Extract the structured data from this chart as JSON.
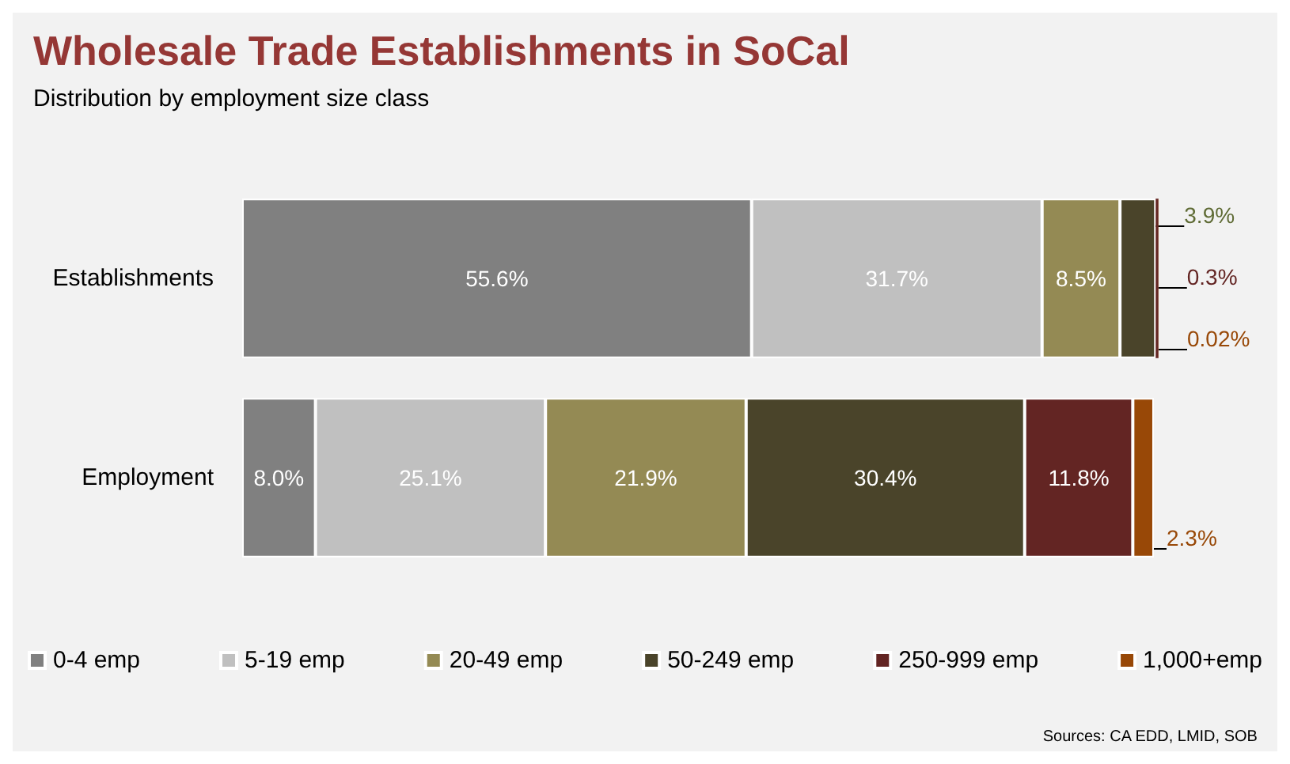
{
  "chart_data": {
    "type": "bar",
    "orientation": "horizontal",
    "stacked": true,
    "title": "Wholesale Trade Establishments in SoCal",
    "subtitle": "Distribution by employment size class",
    "categories": [
      "Establishments",
      "Employment"
    ],
    "series": [
      {
        "name": "0-4 emp",
        "color": "#808080",
        "values": [
          55.6,
          8.0
        ],
        "value_labels": [
          "55.6%",
          "8.0%"
        ]
      },
      {
        "name": "5-19 emp",
        "color": "#c0c0c0",
        "values": [
          31.7,
          25.1
        ],
        "value_labels": [
          "31.7%",
          "25.1%"
        ]
      },
      {
        "name": "20-49 emp",
        "color": "#948a54",
        "values": [
          8.5,
          21.9
        ],
        "value_labels": [
          "8.5%",
          "21.9%"
        ]
      },
      {
        "name": "50-249 emp",
        "color": "#4a442a",
        "values": [
          3.9,
          30.4
        ],
        "value_labels": [
          "3.9%",
          "30.4%"
        ]
      },
      {
        "name": "250-999 emp",
        "color": "#632523",
        "values": [
          0.3,
          11.8
        ],
        "value_labels": [
          "0.3%",
          "11.8%"
        ]
      },
      {
        "name": "1,000+emp",
        "color": "#984807",
        "values": [
          0.02,
          2.3
        ],
        "value_labels": [
          "0.02%",
          "2.3%"
        ]
      }
    ],
    "legend": "bottom",
    "annotations": [
      "Sources: CA EDD, LMID, SOB"
    ]
  }
}
